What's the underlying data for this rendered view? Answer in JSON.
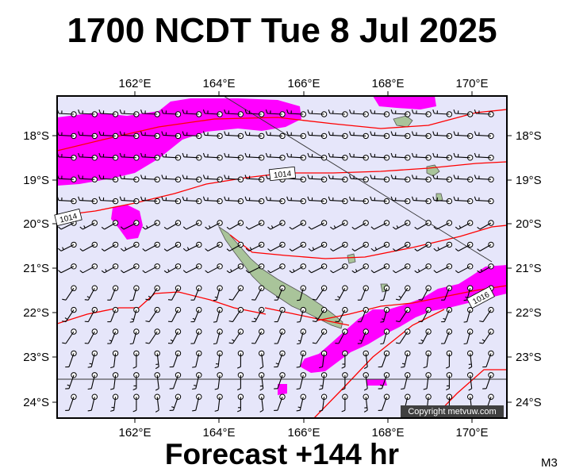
{
  "header": {
    "title": "1700 NCDT Tue 8 Jul 2025"
  },
  "footer": {
    "forecast": "Forecast +144 hr",
    "model_code": "M3"
  },
  "map": {
    "lon_labels": [
      "162°E",
      "164°E",
      "166°E",
      "168°E",
      "170°E"
    ],
    "lat_labels": [
      "18°S",
      "19°S",
      "20°S",
      "21°S",
      "22°S",
      "23°S",
      "24°S"
    ],
    "isobar_labels": [
      "1014",
      "1014",
      "1016"
    ],
    "copyright": "Copyright metvuw.com",
    "colors": {
      "ocean": "#e6e6fa",
      "rain": "#ff00ff",
      "isobar": "#ff0000",
      "land": "#a9c49a"
    },
    "layers": [
      "wind-barbs",
      "isobars",
      "rain-shading",
      "land",
      "tropic-line",
      "track-line"
    ]
  }
}
